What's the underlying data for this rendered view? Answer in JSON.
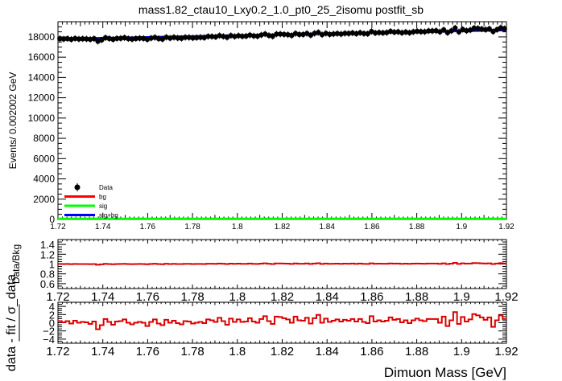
{
  "chart_data": {
    "title": "mass1.82_ctau10_Lxy0.2_1.0_pt0_25_2isomu   postfit_sb",
    "xlim": [
      1.72,
      1.92
    ],
    "x_tick_labels": [
      "1.72",
      "1.74",
      "1.76",
      "1.78",
      "1.8",
      "1.82",
      "1.84",
      "1.86",
      "1.88",
      "1.9",
      "1.92"
    ],
    "xlabel": "Dimuon Mass [GeV]",
    "panels": [
      {
        "type": "scatter",
        "ylabel": "Events/ 0.002002 GeV",
        "ylim": [
          0,
          19500
        ],
        "y_tick_labels": [
          "0",
          "2000",
          "4000",
          "6000",
          "8000",
          "10000",
          "12000",
          "14000",
          "16000",
          "18000"
        ],
        "legend": {
          "position": "bottom-left",
          "entries": [
            "Data",
            "bg",
            "sig",
            "sig+bg"
          ]
        },
        "series": [
          {
            "name": "Data",
            "kind": "points",
            "color": "#000000",
            "bin_width": 0.002002,
            "values": [
              17830,
              17790,
              17830,
              17760,
              17850,
              17790,
              17820,
              17800,
              17760,
              17830,
              17570,
              17700,
              17920,
              17840,
              17760,
              17850,
              17860,
              17920,
              17830,
              17780,
              17840,
              17870,
              17850,
              17760,
              17880,
              17950,
              17830,
              17780,
              17970,
              17880,
              17960,
              17890,
              17860,
              17960,
              17950,
              17900,
              17930,
              17960,
              17930,
              18050,
              18040,
              18000,
              18130,
              18050,
              17960,
              18130,
              18040,
              18120,
              18060,
              18080,
              18180,
              18100,
              18070,
              18190,
              18290,
              18140,
              18060,
              18280,
              18280,
              18250,
              18220,
              18140,
              18340,
              18240,
              18240,
              18340,
              18170,
              18350,
              18440,
              18220,
              18350,
              18250,
              18290,
              18330,
              18280,
              18350,
              18340,
              18390,
              18320,
              18410,
              18330,
              18310,
              18540,
              18390,
              18430,
              18400,
              18430,
              18550,
              18470,
              18500,
              18410,
              18480,
              18410,
              18500,
              18560,
              18520,
              18510,
              18590,
              18590,
              18610,
              18500,
              18700,
              18420,
              18600,
              18880,
              18500,
              18740,
              18610,
              18680,
              18870,
              18840,
              18780,
              18720,
              18800,
              18530,
              18720,
              18900,
              18810
            ]
          },
          {
            "name": "bg",
            "kind": "line",
            "color": "#ff0000",
            "values_endpoints": [
              17780,
              18680
            ]
          },
          {
            "name": "sig",
            "kind": "line",
            "color": "#00ff00",
            "values_endpoints": [
              0,
              0
            ]
          },
          {
            "name": "sig+bg",
            "kind": "line",
            "color": "#0000ff",
            "values_endpoints": [
              17780,
              18680
            ]
          }
        ]
      },
      {
        "type": "line",
        "ylabel": "Data/Bkg",
        "ylim": [
          0.5,
          1.5
        ],
        "y_tick_labels": [
          "0.6",
          "0.8",
          "1",
          "1.2",
          "1.4"
        ],
        "series": [
          {
            "name": "Data/Bkg",
            "color": "#dd0000",
            "values": [
              1.002,
              0.999,
              1.002,
              0.998,
              1.003,
              0.999,
              1.001,
              1.0,
              0.998,
              1.001,
              0.986,
              0.994,
              1.005,
              1.001,
              0.996,
              1.001,
              1.002,
              1.005,
              1.0,
              0.997,
              1.0,
              1.002,
              1.0,
              0.995,
              1.002,
              1.006,
              0.999,
              0.996,
              1.006,
              1.001,
              1.005,
              1.001,
              0.999,
              1.004,
              1.004,
              1.0,
              1.002,
              1.003,
              1.001,
              1.007,
              1.006,
              1.004,
              1.011,
              1.006,
              1.0,
              1.009,
              1.004,
              1.008,
              1.004,
              1.005,
              1.01,
              1.005,
              1.003,
              1.009,
              1.014,
              1.006,
              1.001,
              1.013,
              1.012,
              1.01,
              1.008,
              1.003,
              1.013,
              1.007,
              1.007,
              1.012,
              1.002,
              1.011,
              1.016,
              1.003,
              1.01,
              1.004,
              1.006,
              1.008,
              1.005,
              1.008,
              1.007,
              1.01,
              1.005,
              1.01,
              1.005,
              1.003,
              1.015,
              1.006,
              1.008,
              1.006,
              1.007,
              1.013,
              1.009,
              1.01,
              1.005,
              1.008,
              1.004,
              1.008,
              1.011,
              1.008,
              1.007,
              1.011,
              1.011,
              1.011,
              1.005,
              1.015,
              1.0,
              1.009,
              1.024,
              1.003,
              1.015,
              1.008,
              1.011,
              1.021,
              1.019,
              1.015,
              1.011,
              1.015,
              1.0,
              1.01,
              1.019,
              1.013
            ]
          }
        ]
      },
      {
        "type": "line",
        "ylabel": "data - fit / σ_data",
        "ylim": [
          -5,
          5
        ],
        "y_tick_labels": [
          "−4",
          "−2",
          "0",
          "2",
          "4"
        ],
        "series": [
          {
            "name": "pull",
            "color": "#dd0000",
            "values": [
              0.4,
              0.1,
              0.4,
              -0.2,
              0.5,
              0.0,
              0.2,
              0.1,
              -0.3,
              0.3,
              -1.6,
              -0.6,
              0.9,
              0.2,
              -0.5,
              0.3,
              0.4,
              0.8,
              0.0,
              -0.4,
              0.0,
              0.2,
              0.0,
              -0.8,
              0.2,
              0.8,
              -0.2,
              -0.6,
              0.7,
              0.0,
              0.5,
              -0.1,
              -0.4,
              0.4,
              0.3,
              -0.2,
              0.0,
              0.2,
              -0.1,
              0.8,
              0.6,
              0.2,
              1.2,
              0.4,
              -0.5,
              1.0,
              0.2,
              0.8,
              0.2,
              0.3,
              1.1,
              0.3,
              0.0,
              0.9,
              1.6,
              0.4,
              -0.3,
              1.5,
              1.4,
              1.1,
              0.8,
              0.0,
              1.5,
              0.6,
              0.5,
              1.2,
              -0.2,
              1.1,
              1.9,
              0.0,
              1.0,
              0.2,
              0.5,
              0.8,
              0.3,
              0.7,
              0.5,
              0.9,
              0.3,
              0.9,
              0.2,
              -0.1,
              1.6,
              0.3,
              0.6,
              0.3,
              0.5,
              1.3,
              0.7,
              0.9,
              0.1,
              0.6,
              -0.1,
              0.6,
              1.0,
              0.6,
              0.4,
              0.9,
              0.9,
              0.9,
              0.0,
              1.5,
              -0.8,
              0.6,
              2.6,
              -0.3,
              1.4,
              0.3,
              0.8,
              2.1,
              1.8,
              1.3,
              0.7,
              1.3,
              -1.0,
              0.6,
              1.8,
              0.9
            ]
          }
        ]
      }
    ]
  }
}
